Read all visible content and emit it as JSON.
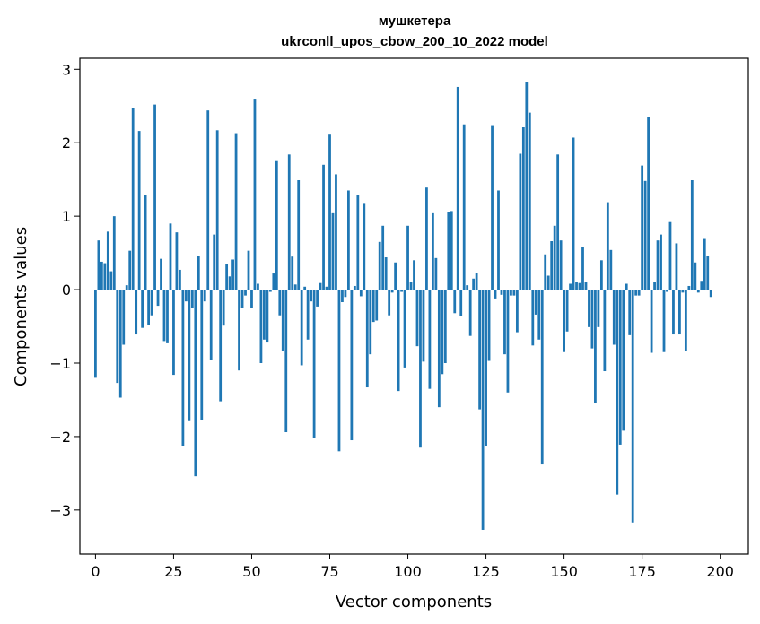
{
  "chart_data": {
    "type": "bar",
    "title_line1": "мушкетера",
    "title_line2": "ukrconll_upos_cbow_200_10_2022 model",
    "xlabel": "Vector components",
    "ylabel": "Components values",
    "xlim": [
      -5,
      209
    ],
    "ylim": [
      -3.6,
      3.15
    ],
    "xticks": [
      0,
      25,
      50,
      75,
      100,
      125,
      150,
      175,
      200
    ],
    "xtick_labels": [
      "0",
      "25",
      "50",
      "75",
      "100",
      "125",
      "150",
      "175",
      "200"
    ],
    "yticks": [
      -3,
      -2,
      -1,
      0,
      1,
      2,
      3
    ],
    "ytick_labels": [
      "−3",
      "−2",
      "−1",
      "0",
      "1",
      "2",
      "3"
    ],
    "bar_color": "#1f77b4",
    "values": [
      -1.2,
      0.67,
      0.38,
      0.36,
      0.79,
      0.25,
      1.0,
      -1.27,
      -1.47,
      -0.75,
      0.06,
      0.53,
      2.47,
      -0.61,
      2.16,
      -0.52,
      1.29,
      -0.48,
      -0.35,
      2.52,
      -0.22,
      0.42,
      -0.7,
      -0.73,
      0.9,
      -1.16,
      0.78,
      0.27,
      -2.13,
      -0.16,
      -1.79,
      -0.25,
      -2.54,
      0.46,
      -1.78,
      -0.16,
      2.44,
      -0.96,
      0.75,
      2.17,
      -1.52,
      -0.49,
      0.35,
      0.18,
      0.41,
      2.13,
      -1.1,
      -0.25,
      -0.08,
      0.53,
      -0.25,
      2.6,
      0.08,
      -1.0,
      -0.68,
      -0.72,
      -0.03,
      0.22,
      1.75,
      -0.35,
      -0.83,
      -1.94,
      1.84,
      0.45,
      0.07,
      1.49,
      -1.03,
      0.04,
      -0.68,
      -0.16,
      -2.02,
      -0.23,
      0.09,
      1.7,
      0.04,
      2.11,
      1.04,
      1.57,
      -2.2,
      -0.17,
      -0.1,
      1.35,
      -2.05,
      0.05,
      1.29,
      -0.09,
      1.18,
      -1.33,
      -0.88,
      -0.44,
      -0.42,
      0.65,
      0.87,
      0.44,
      -0.35,
      -0.04,
      0.37,
      -1.38,
      -0.03,
      -1.06,
      0.87,
      0.1,
      0.4,
      -0.77,
      -2.15,
      -0.98,
      1.39,
      -1.35,
      1.04,
      0.43,
      -1.6,
      -1.15,
      -1.0,
      1.06,
      1.07,
      -0.32,
      2.76,
      -0.36,
      2.25,
      0.06,
      -0.63,
      0.15,
      0.23,
      -1.63,
      -3.27,
      -2.13,
      -0.97,
      2.24,
      -0.12,
      1.35,
      -0.07,
      -0.88,
      -1.4,
      -0.08,
      -0.08,
      -0.58,
      1.85,
      2.21,
      2.83,
      2.41,
      -0.76,
      -0.34,
      -0.68,
      -2.38,
      0.48,
      0.19,
      0.66,
      0.87,
      1.84,
      0.67,
      -0.85,
      -0.57,
      0.08,
      2.07,
      0.1,
      0.09,
      0.58,
      0.1,
      -0.51,
      -0.8,
      -1.54,
      -0.51,
      0.4,
      -1.11,
      1.19,
      0.54,
      -0.75,
      -2.79,
      -2.11,
      -1.92,
      0.08,
      -0.62,
      -3.17,
      -0.08,
      -0.08,
      1.69,
      1.48,
      2.35,
      -0.86,
      0.1,
      0.67,
      0.75,
      -0.85,
      -0.03,
      0.92,
      -0.61,
      0.63,
      -0.61,
      -0.04,
      -0.84,
      0.05,
      1.49,
      0.37,
      -0.04,
      0.12,
      0.69,
      0.46,
      -0.1
    ]
  }
}
